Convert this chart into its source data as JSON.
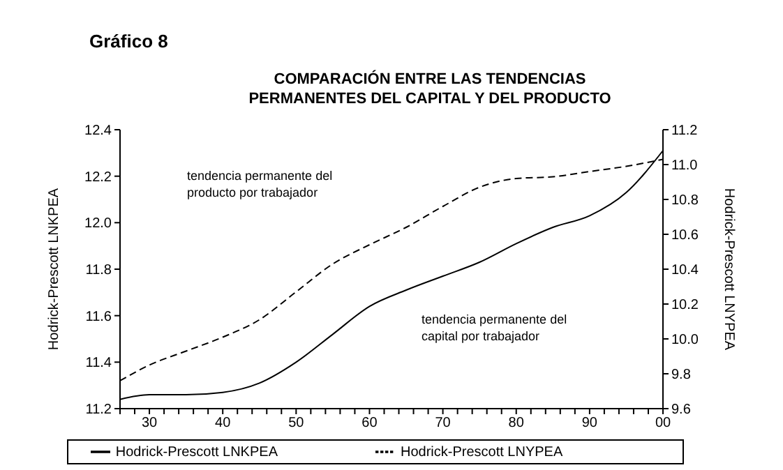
{
  "chart_data": {
    "type": "line",
    "title": "COMPARACIÓN ENTRE LAS TENDENCIAS\nPERMANENTES  DEL CAPITAL Y DEL PRODUCTO",
    "ylabel": "Hodrick-Prescott LNKPEA",
    "y2label": "Hodrick-Prescott LNYPEA",
    "annotations": [
      "Gráfico 8",
      "tendencia permanente del\nproducto por trabajador",
      "tendencia permanente del\ncapital por trabajador"
    ],
    "x": [
      1926,
      1930,
      1935,
      1940,
      1945,
      1950,
      1955,
      1960,
      1965,
      1970,
      1975,
      1980,
      1985,
      1990,
      1995,
      2000
    ],
    "series": [
      {
        "name": "Hodrick-Prescott LNKPEA",
        "color": "#000000",
        "line_style": "solid",
        "values": [
          11.24,
          11.26,
          11.26,
          11.27,
          11.31,
          11.4,
          11.52,
          11.64,
          11.71,
          11.77,
          11.83,
          11.91,
          11.98,
          12.03,
          12.13,
          12.31
        ]
      },
      {
        "name": "Hodrick-Prescott LNYPEA",
        "color": "#000000",
        "line_style": "dashed",
        "axis": "y2",
        "values": [
          9.76,
          9.85,
          9.93,
          10.01,
          10.11,
          10.27,
          10.43,
          10.54,
          10.64,
          10.76,
          10.87,
          10.92,
          10.93,
          10.96,
          10.99,
          11.03
        ]
      }
    ],
    "xlim": [
      1926,
      2000
    ],
    "xticks": [
      {
        "value": 1926,
        "label": null
      },
      {
        "value": 1928,
        "label": null
      },
      {
        "value": 1930,
        "label": "30"
      },
      {
        "value": 1932,
        "label": null
      },
      {
        "value": 1934,
        "label": null
      },
      {
        "value": 1936,
        "label": null
      },
      {
        "value": 1938,
        "label": null
      },
      {
        "value": 1940,
        "label": "40"
      },
      {
        "value": 1942,
        "label": null
      },
      {
        "value": 1944,
        "label": null
      },
      {
        "value": 1946,
        "label": null
      },
      {
        "value": 1948,
        "label": null
      },
      {
        "value": 1950,
        "label": "50"
      },
      {
        "value": 1952,
        "label": null
      },
      {
        "value": 1954,
        "label": null
      },
      {
        "value": 1956,
        "label": null
      },
      {
        "value": 1958,
        "label": null
      },
      {
        "value": 1960,
        "label": "60"
      },
      {
        "value": 1962,
        "label": null
      },
      {
        "value": 1964,
        "label": null
      },
      {
        "value": 1966,
        "label": null
      },
      {
        "value": 1968,
        "label": null
      },
      {
        "value": 1970,
        "label": "70"
      },
      {
        "value": 1972,
        "label": null
      },
      {
        "value": 1974,
        "label": null
      },
      {
        "value": 1976,
        "label": null
      },
      {
        "value": 1978,
        "label": null
      },
      {
        "value": 1980,
        "label": "80"
      },
      {
        "value": 1982,
        "label": null
      },
      {
        "value": 1984,
        "label": null
      },
      {
        "value": 1986,
        "label": null
      },
      {
        "value": 1988,
        "label": null
      },
      {
        "value": 1990,
        "label": "90"
      },
      {
        "value": 1992,
        "label": null
      },
      {
        "value": 1994,
        "label": null
      },
      {
        "value": 1996,
        "label": null
      },
      {
        "value": 1998,
        "label": null
      },
      {
        "value": 2000,
        "label": "00"
      }
    ],
    "ylim": [
      11.2,
      12.4
    ],
    "yticks": [
      {
        "value": 11.2,
        "label": "11.2"
      },
      {
        "value": 11.4,
        "label": "11.4"
      },
      {
        "value": 11.6,
        "label": "11.6"
      },
      {
        "value": 11.8,
        "label": "11.8"
      },
      {
        "value": 12,
        "label": "12.0"
      },
      {
        "value": 12.2,
        "label": "12.2"
      },
      {
        "value": 12.4,
        "label": "12.4"
      }
    ],
    "y2lim": [
      9.6,
      11.2
    ],
    "y2ticks": [
      {
        "value": 9.6,
        "label": "9.6"
      },
      {
        "value": 9.8,
        "label": "9.8"
      },
      {
        "value": 10,
        "label": "10.0"
      },
      {
        "value": 10.2,
        "label": "10.2"
      },
      {
        "value": 10.4,
        "label": "10.4"
      },
      {
        "value": 10.6,
        "label": "10.6"
      },
      {
        "value": 10.8,
        "label": "10.8"
      },
      {
        "value": 11,
        "label": "11.0"
      },
      {
        "value": 11.2,
        "label": "11.2"
      }
    ],
    "grid": false,
    "legend": "bottom",
    "marker": "none"
  }
}
